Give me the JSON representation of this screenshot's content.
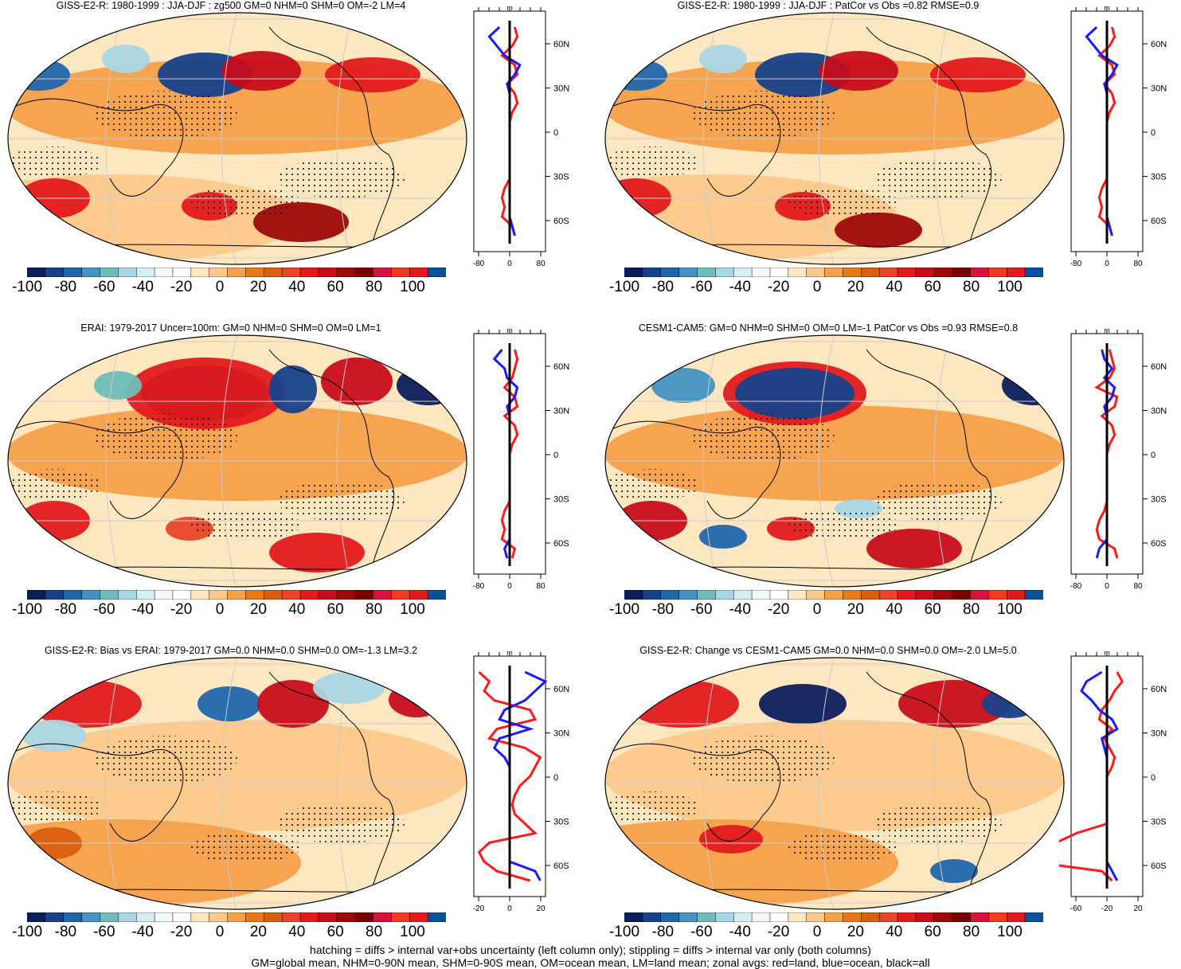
{
  "panels": [
    {
      "title": "GISS-E2-R: 1980-1999 : JJA-DJF : zg500 GM=0 NHM=0 SHM=0 OM=-2 LM=4",
      "zonal_xticks": [
        "-80",
        "0",
        "80"
      ],
      "zonal_xlabel": "m",
      "zonal_yticks": [
        "60N",
        "30N",
        "0",
        "30S",
        "60S"
      ]
    },
    {
      "title": "GISS-E2-R: 1980-1999 : JJA-DJF : PatCor vs Obs =0.82 RMSE=0.9",
      "zonal_xticks": [
        "-80",
        "0",
        "80"
      ],
      "zonal_xlabel": "m",
      "zonal_yticks": [
        "60N",
        "30N",
        "0",
        "30S",
        "60S"
      ]
    },
    {
      "title": "ERAI: 1979-2017 Uncer=100m: GM=0 NHM=0 SHM=0 OM=0 LM=1",
      "zonal_xticks": [
        "-80",
        "0",
        "80"
      ],
      "zonal_xlabel": "m",
      "zonal_yticks": [
        "60N",
        "30N",
        "0",
        "30S",
        "60S"
      ]
    },
    {
      "title": "CESM1-CAM5: GM=0 NHM=0 SHM=0 OM=0 LM=-1 PatCor vs Obs =0.93 RMSE=0.8",
      "zonal_xticks": [
        "-80",
        "0",
        "80"
      ],
      "zonal_xlabel": "m",
      "zonal_yticks": [
        "60N",
        "30N",
        "0",
        "30S",
        "60S"
      ]
    },
    {
      "title": "GISS-E2-R: Bias vs ERAI: 1979-2017 GM=0.0 NHM=0.0 SHM=0.0 OM=-1.3 LM=3.2",
      "zonal_xticks": [
        "-20",
        "0",
        "20"
      ],
      "zonal_xlabel": "m",
      "zonal_yticks": [
        "60N",
        "30N",
        "0",
        "30S",
        "60S"
      ]
    },
    {
      "title": "GISS-E2-R: Change vs CESM1-CAM5 GM=0.0 NHM=0.0 SHM=0.0 OM=-2.0 LM=5.0",
      "zonal_xticks": [
        "-60",
        "-20",
        "20"
      ],
      "zonal_xlabel": "m",
      "zonal_yticks": [
        "60N",
        "30N",
        "0",
        "30S",
        "60S"
      ]
    }
  ],
  "colorbar": {
    "labels": [
      "-100",
      "-80",
      "-60",
      "-40",
      "-20",
      "0",
      "20",
      "40",
      "60",
      "80",
      "100"
    ],
    "colors": [
      "#0c1d5c",
      "#17418a",
      "#2166ac",
      "#4393c3",
      "#6fbcb8",
      "#a9d6e5",
      "#d5eef2",
      "#f2f7fb",
      "#ffffff",
      "#fde7c0",
      "#fdc98a",
      "#f6a04a",
      "#e77a17",
      "#d95f0e",
      "#e8452a",
      "#e31a1c",
      "#c70d1c",
      "#9e0a0a",
      "#7a0000",
      "#d4143c",
      "#f03b20",
      "#e31a1c",
      "#08519c"
    ]
  },
  "zonal_colors": {
    "land": "#ff1a1a",
    "ocean": "#1a1aff",
    "all": "#000000"
  },
  "footer": {
    "line1": "hatching = diffs > internal var+obs uncertainty (left column only); stippling = diffs > internal var only (both columns)",
    "line2": "GM=global mean, NHM=0-90N mean, SHM=0-90S mean, OM=ocean mean, LM=land mean; zonal avgs: red=land, blue=ocean, black=all"
  }
}
